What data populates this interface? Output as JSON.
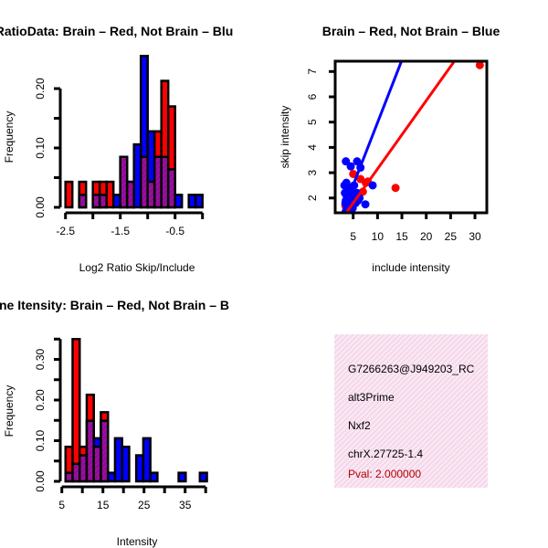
{
  "colors": {
    "red": "#ff0000",
    "blue": "#0000ff",
    "purple": "#9a0fa0",
    "pval": "#b00000",
    "info_bg": "#f8d8ee"
  },
  "chart_data": [
    {
      "type": "bar",
      "title": "RatioData: Brain – Red, Not Brain – Blu",
      "xlabel": "Log2 Ratio Skip/Include",
      "ylabel": "Frequency",
      "xlim": [
        -2.5,
        0.0
      ],
      "ylim": [
        0,
        0.25
      ],
      "xticks": [
        -2.5,
        -2.0,
        -1.5,
        -1.0,
        -0.5,
        0.0
      ],
      "xtick_labels": [
        "-2.5",
        "-1.5",
        "-0.5"
      ],
      "xtick_label_values": [
        -2.5,
        -1.5,
        -0.5
      ],
      "yticks": [
        0,
        0.05,
        0.1,
        0.15,
        0.2
      ],
      "ytick_labels": [
        "0.00",
        "0.10",
        "0.20"
      ],
      "ytick_label_values": [
        0,
        0.1,
        0.2
      ],
      "bin_start": -2.5,
      "bin_width": 0.125,
      "series": [
        {
          "name": "Brain",
          "color": "red",
          "values": [
            0.043,
            0,
            0.043,
            0,
            0.043,
            0.043,
            0.043,
            0,
            0.085,
            0.043,
            0,
            0.085,
            0.043,
            0.128,
            0.213,
            0.17,
            0,
            0,
            0,
            0
          ]
        },
        {
          "name": "Not Brain",
          "color": "blue",
          "values": [
            0,
            0,
            0.021,
            0,
            0.021,
            0.021,
            0,
            0.021,
            0.085,
            0.043,
            0.106,
            0.255,
            0.128,
            0.085,
            0.085,
            0.064,
            0.021,
            0,
            0.021,
            0.021
          ]
        }
      ]
    },
    {
      "type": "scatter",
      "title": "Brain – Red, Not Brain – Blue",
      "xlabel": "include intensity",
      "ylabel": "skip intensity",
      "xlim": [
        1.5,
        32.5
      ],
      "ylim": [
        1.4,
        7.45
      ],
      "xticks": [
        5,
        10,
        15,
        20,
        25,
        30
      ],
      "xtick_labels": [
        "5",
        "10",
        "15",
        "20",
        "25",
        "30"
      ],
      "yticks": [
        2,
        3,
        4,
        5,
        6,
        7
      ],
      "ytick_labels": [
        "2",
        "3",
        "4",
        "5",
        "6",
        "7"
      ],
      "series": [
        {
          "name": "Brain",
          "color": "red",
          "points": [
            [
              31,
              7.25
            ],
            [
              13.7,
              2.4
            ],
            [
              8,
              2.65
            ],
            [
              7,
              2.25
            ],
            [
              5,
              2.95
            ],
            [
              4.3,
              1.8
            ],
            [
              3.4,
              1.7
            ],
            [
              4,
              2.0
            ],
            [
              5.5,
              2.0
            ],
            [
              6.5,
              2.75
            ],
            [
              4.8,
              1.85
            ],
            [
              3.8,
              1.6
            ],
            [
              6,
              2.1
            ],
            [
              7.6,
              2.6
            ],
            [
              5.2,
              2.2
            ]
          ],
          "fit": {
            "slope": 0.27,
            "intercept": 0.45
          }
        },
        {
          "name": "Not Brain",
          "color": "blue",
          "points": [
            [
              3.5,
              3.45
            ],
            [
              4.5,
              3.25
            ],
            [
              5.8,
              3.45
            ],
            [
              6.5,
              3.2
            ],
            [
              9,
              2.5
            ],
            [
              7.5,
              1.75
            ],
            [
              3.2,
              2.5
            ],
            [
              3.6,
              2.6
            ],
            [
              4,
              2.3
            ],
            [
              4.2,
              2.1
            ],
            [
              3.5,
              1.9
            ],
            [
              3.8,
              1.7
            ],
            [
              4.5,
              2.0
            ],
            [
              5,
              1.9
            ],
            [
              5.5,
              1.8
            ],
            [
              6,
              1.9
            ],
            [
              4.8,
              2.2
            ],
            [
              3.3,
              2.2
            ],
            [
              4.1,
              2.4
            ],
            [
              3.9,
              1.55
            ],
            [
              5.2,
              2.5
            ],
            [
              4.6,
              1.65
            ],
            [
              6.3,
              2.0
            ],
            [
              3.4,
              1.8
            ],
            [
              4.4,
              1.9
            ],
            [
              5.8,
              2.2
            ],
            [
              4.9,
              1.6
            ],
            [
              3.7,
              2.05
            ]
          ],
          "fit": {
            "slope": 0.494,
            "intercept": 0.04
          }
        }
      ]
    },
    {
      "type": "bar",
      "title": "ne Itensity: Brain – Red, Not Brain – B",
      "xlabel": "Intensity",
      "ylabel": "Frequency",
      "xlim": [
        5,
        40
      ],
      "ylim": [
        0,
        0.35
      ],
      "xticks": [
        5,
        10,
        15,
        20,
        25,
        30,
        35,
        40
      ],
      "xtick_labels": [
        "5",
        "15",
        "25",
        "35"
      ],
      "xtick_label_values": [
        5,
        15,
        25,
        35
      ],
      "yticks": [
        0,
        0.05,
        0.1,
        0.15,
        0.2,
        0.25,
        0.3,
        0.35
      ],
      "ytick_labels": [
        "0.00",
        "0.10",
        "0.20",
        "0.30"
      ],
      "ytick_label_values": [
        0,
        0.1,
        0.2,
        0.3
      ],
      "bin_start": 5.9,
      "bin_width": 1.72,
      "series": [
        {
          "name": "Brain",
          "color": "red",
          "values": [
            0.085,
            0.35,
            0.085,
            0.213,
            0.085,
            0.17,
            0,
            0,
            0,
            0,
            0,
            0,
            0,
            0,
            0,
            0,
            0,
            0,
            0,
            0
          ]
        },
        {
          "name": "Not Brain",
          "color": "blue",
          "values": [
            0.021,
            0.043,
            0.064,
            0.149,
            0.106,
            0.149,
            0.021,
            0.106,
            0.085,
            0,
            0.064,
            0.106,
            0.021,
            0,
            0,
            0,
            0.021,
            0,
            0,
            0.021
          ]
        }
      ]
    }
  ],
  "info": {
    "id": "G7266263@J949203_RC",
    "type": "alt3Prime",
    "gene": "Nxf2",
    "location": "chrX.27725-1.4",
    "pval": "Pval: 2.000000"
  }
}
